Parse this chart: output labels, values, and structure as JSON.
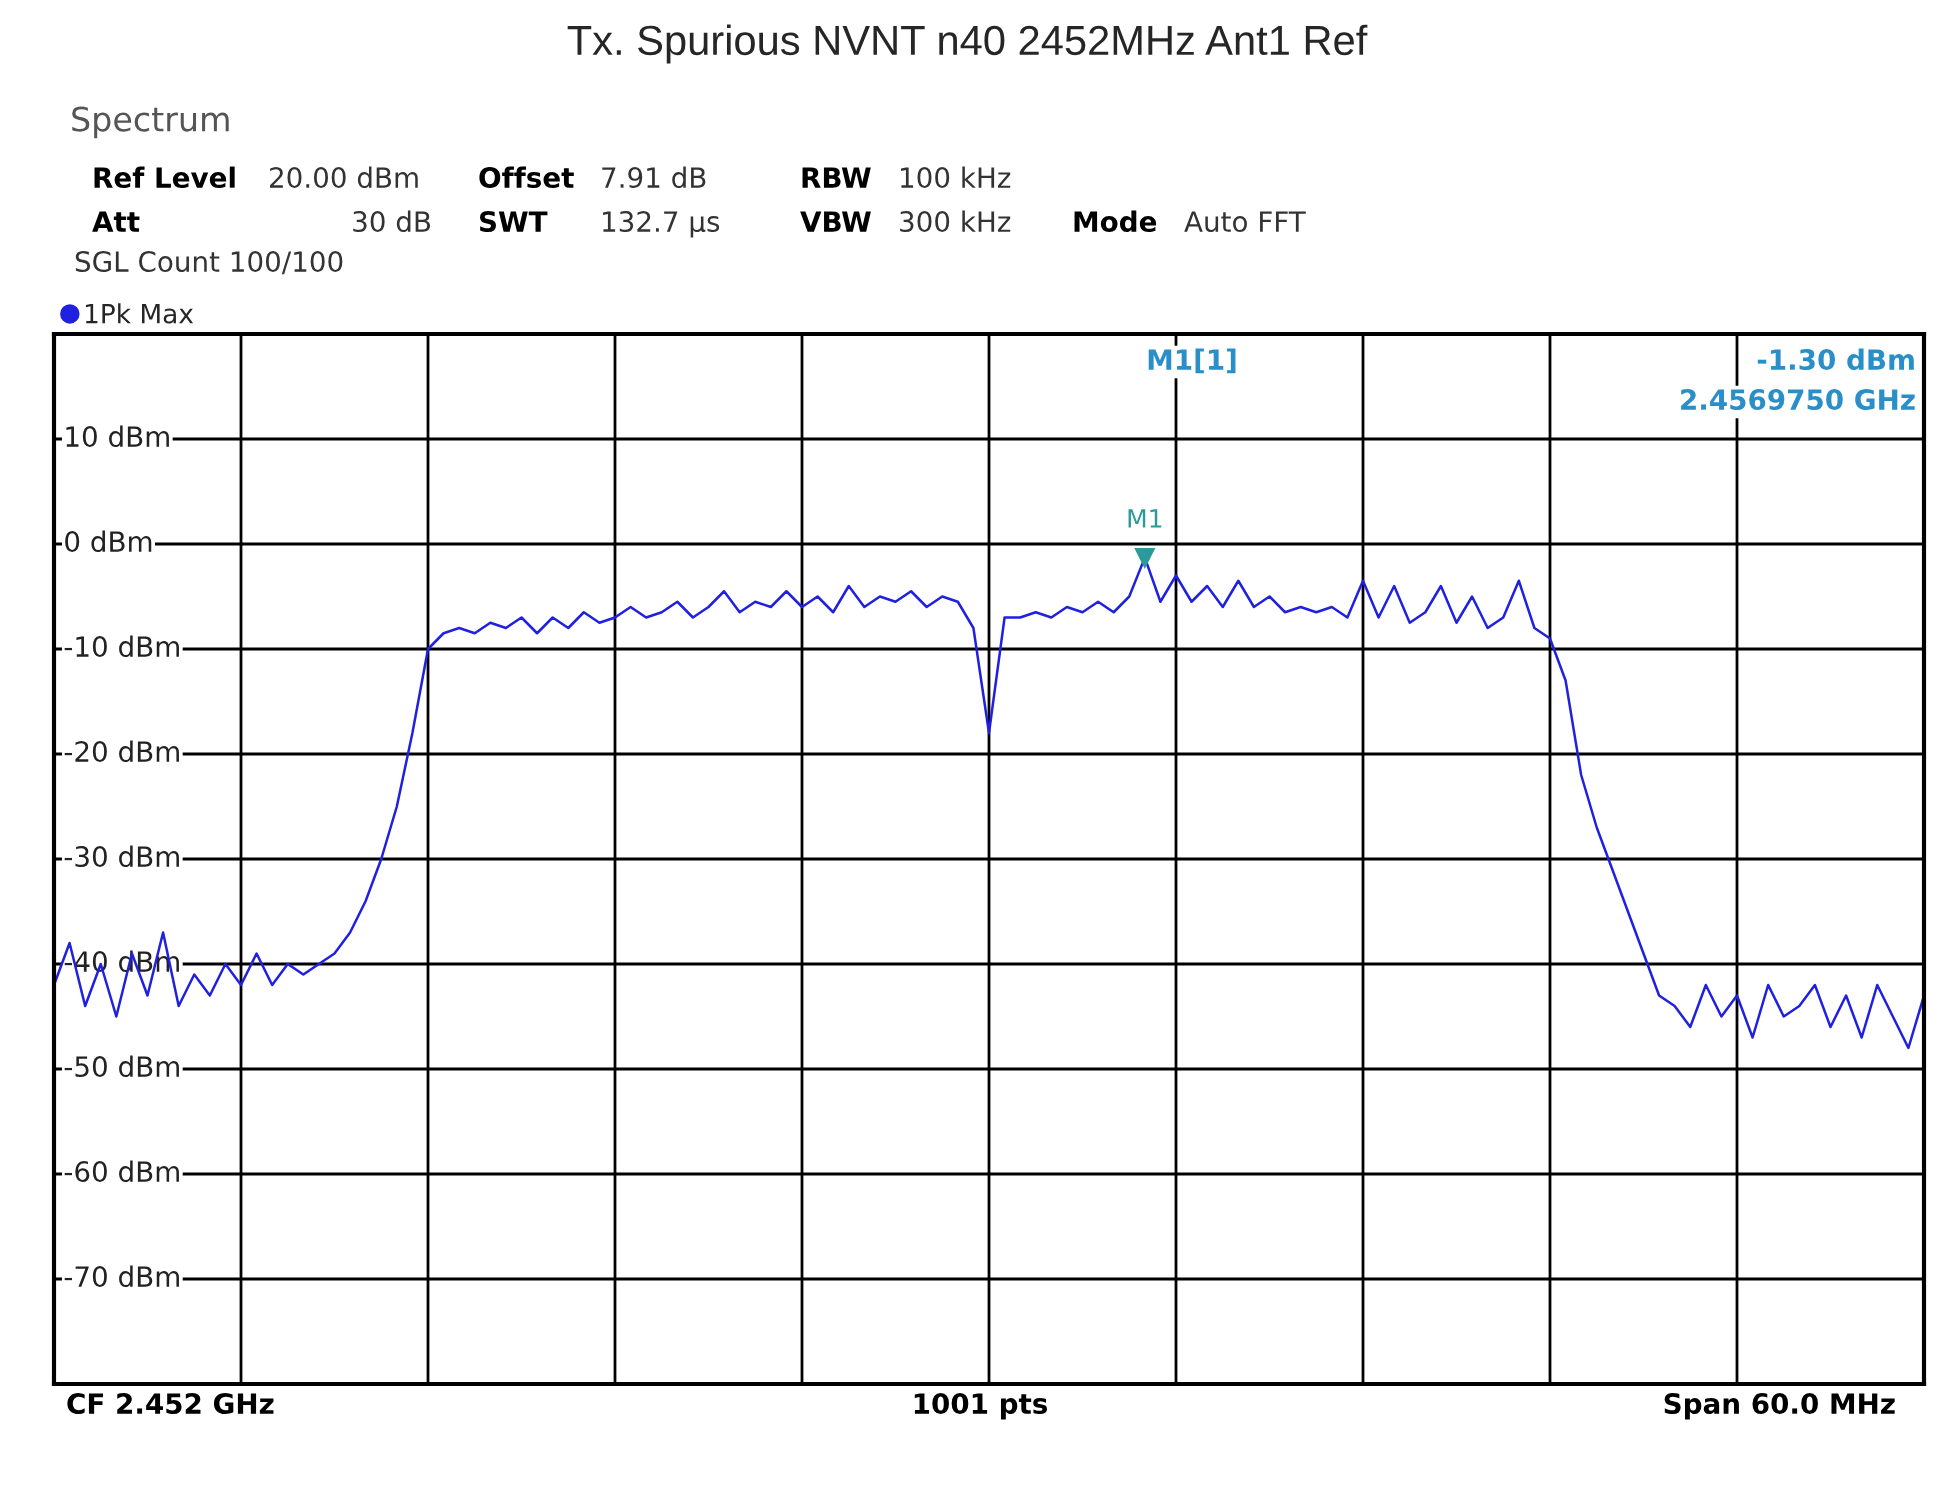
{
  "chart_data": {
    "type": "line",
    "title": "Tx. Spurious NVNT n40 2452MHz Ant1 Ref",
    "categories": [
      null,
      null,
      null,
      null,
      null,
      null,
      null,
      null,
      null,
      null,
      null,
      null,
      null,
      null,
      null,
      null,
      null,
      null,
      null,
      null,
      null,
      null,
      null,
      null,
      null,
      null,
      null,
      null,
      null,
      null,
      null,
      null,
      null,
      null,
      null,
      null,
      null,
      null,
      null,
      null,
      null,
      null,
      null,
      null,
      null,
      null,
      null,
      null,
      null,
      null,
      null,
      null,
      null,
      null,
      null,
      null,
      null,
      null,
      null,
      null,
      null,
      null,
      null,
      null,
      null,
      null,
      null,
      null,
      null,
      null,
      null,
      null,
      null,
      null,
      null,
      null,
      null,
      null,
      null,
      null,
      null,
      null,
      null,
      null,
      null,
      null,
      null,
      null,
      null,
      null,
      null,
      null,
      null,
      null,
      null,
      null,
      null,
      null,
      null,
      null,
      null,
      null,
      null,
      null,
      null,
      null,
      null,
      null,
      null,
      null,
      null,
      null,
      null,
      null,
      null,
      null,
      null,
      null,
      null,
      null,
      null
    ],
    "series": [
      {
        "name": "1Pk Max",
        "color": "#2020e0",
        "values": [
          -42,
          -38,
          -44,
          -40,
          -45,
          -39,
          -43,
          -37,
          -44,
          -41,
          -43,
          -40,
          -42,
          -39,
          -42,
          -40,
          -41,
          -40,
          -39,
          -37,
          -34,
          -30,
          -25,
          -18,
          -10,
          -8.5,
          -8,
          -8.5,
          -7.5,
          -8,
          -7,
          -8.5,
          -7,
          -8,
          -6.5,
          -7.5,
          -7,
          -6,
          -7,
          -6.5,
          -5.5,
          -7,
          -6,
          -4.5,
          -6.5,
          -5.5,
          -6,
          -4.5,
          -6,
          -5,
          -6.5,
          -4,
          -6,
          -5,
          -5.5,
          -4.5,
          -6,
          -5,
          -5.5,
          -8,
          -18,
          -7,
          -7,
          -6.5,
          -7,
          -6,
          -6.5,
          -5.5,
          -6.5,
          -5,
          -1.3,
          -5.5,
          -3,
          -5.5,
          -4,
          -6,
          -3.5,
          -6,
          -5,
          -6.5,
          -6,
          -6.5,
          -6,
          -7,
          -3.5,
          -7,
          -4,
          -7.5,
          -6.5,
          -4,
          -7.5,
          -5,
          -8,
          -7,
          -3.5,
          -8,
          -9,
          -13,
          -22,
          -27,
          -31,
          -35,
          -39,
          -43,
          -44,
          -46,
          -42,
          -45,
          -43,
          -47,
          -42,
          -45,
          -44,
          -42,
          -46,
          -43,
          -47,
          -42,
          -45,
          -48,
          -43
        ]
      }
    ],
    "ylim": [
      -80,
      20
    ],
    "yticks": [
      {
        "value": -80,
        "label": null
      },
      {
        "value": -70,
        "label": "-70 dBm"
      },
      {
        "value": -60,
        "label": "-60 dBm"
      },
      {
        "value": -50,
        "label": "-50 dBm"
      },
      {
        "value": -40,
        "label": "-40 dBm"
      },
      {
        "value": -30,
        "label": "-30 dBm"
      },
      {
        "value": -20,
        "label": "-20 dBm"
      },
      {
        "value": -10,
        "label": "-10 dBm"
      },
      {
        "value": 0,
        "label": "0 dBm"
      },
      {
        "value": 10,
        "label": "10 dBm"
      },
      {
        "value": 20,
        "label": null
      }
    ],
    "grid": true,
    "legend": "top left",
    "annotations": [
      "Spectrum",
      "Ref Level",
      "20.00 dBm",
      "Offset",
      "7.91 dB",
      "RBW",
      "100 kHz",
      "Att",
      "30 dB",
      "SWT",
      "132.7 µs",
      "VBW",
      "300 kHz",
      "Mode",
      "Auto FFT",
      "SGL Count 100/100",
      "M1[1]",
      "-1.30 dBm",
      "2.4569750 GHz",
      "CF 2.452 GHz",
      "1001 pts",
      "Span 60.0 MHz",
      {
        "text": "M1",
        "y": -1.3
      }
    ]
  }
}
